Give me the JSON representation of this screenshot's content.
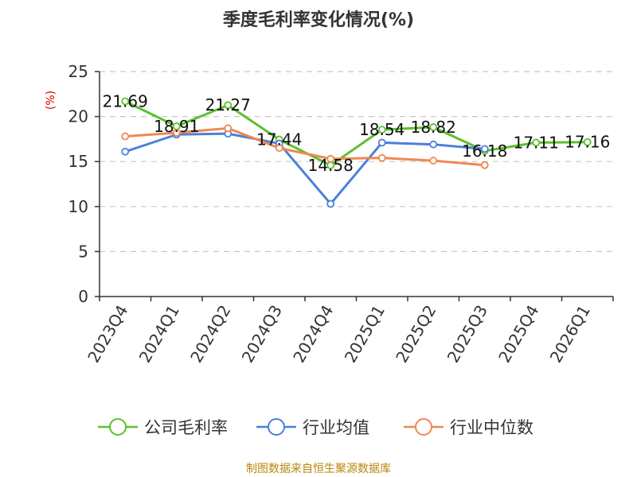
{
  "chart_data": {
    "type": "line",
    "title": "季度毛利率变化情况(%)",
    "ylabel": "(%)",
    "xlabel": "",
    "ylim": [
      0,
      25
    ],
    "yticks": [
      0,
      5,
      10,
      15,
      20,
      25
    ],
    "grid": true,
    "legend_position": "bottom",
    "categories": [
      "2023Q4",
      "2024Q1",
      "2024Q2",
      "2024Q3",
      "2024Q4",
      "2025Q1",
      "2025Q2",
      "2025Q3",
      "2025Q4",
      "2026Q1"
    ],
    "series": [
      {
        "name": "公司毛利率",
        "color": "#5cc02d",
        "values": [
          21.69,
          18.91,
          21.27,
          17.44,
          14.58,
          18.54,
          18.82,
          16.18,
          17.11,
          17.16
        ],
        "labels": [
          "21.69",
          "18.91",
          "21.27",
          "17.44",
          "14.58",
          "18.54",
          "18.82",
          "16.18",
          "17.11",
          "17.16"
        ]
      },
      {
        "name": "行业均值",
        "color": "#4a7fdc",
        "values": [
          16.1,
          18.0,
          18.1,
          17.0,
          10.3,
          17.1,
          16.9,
          16.4,
          null,
          null
        ]
      },
      {
        "name": "行业中位数",
        "color": "#f08850",
        "values": [
          17.8,
          18.2,
          18.7,
          16.5,
          15.3,
          15.4,
          15.1,
          14.6,
          null,
          null
        ]
      }
    ]
  },
  "source": "制图数据来自恒生聚源数据库"
}
